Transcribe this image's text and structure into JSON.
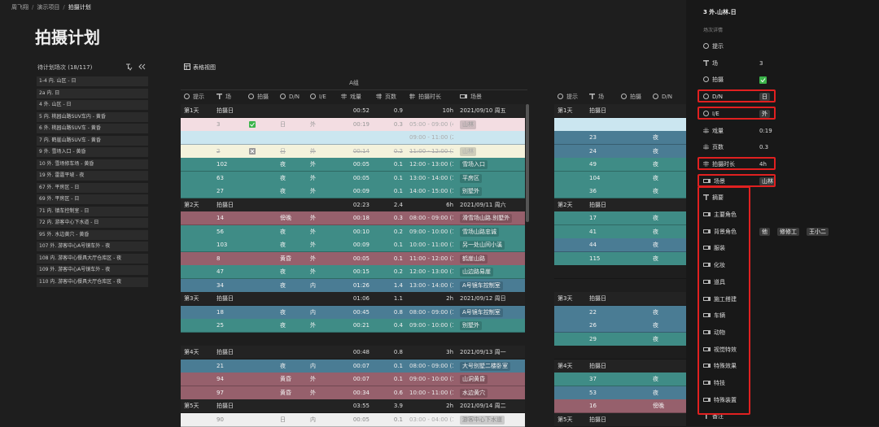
{
  "breadcrumb": {
    "items": [
      "周飞翔",
      "演示项目",
      "拍摄计划"
    ],
    "separator": "/"
  },
  "page_title": "拍摄计划",
  "unscheduled": {
    "title": "待计划场次 (18/117)",
    "items": [
      "1-4 内. 山区 - 日",
      "2a 内. 日",
      "4 外. 山区 - 日",
      "5 内. 桃园山路SUV车内 - 黄昏",
      "6 外. 桃园山路SUV车 - 黄昏",
      "7 内. 鹤崖山路SUV车 - 黄昏",
      "9 外. 雪场入口 - 黄昏",
      "10 外. 雪场修车场 - 黄昏",
      "19 外. 雷霆平坡 - 夜",
      "67 外. 平房区 - 日",
      "69 外. 平房区 - 日",
      "71 内. 镇车控制室 - 日",
      "72 内. 游客中心下水道 - 日",
      "95 外. 水边黄穴 - 黄昏",
      "107 外. 游客中心A号镜车外 - 夜",
      "108 内. 游客中心餐具大厅仓库区 - 夜",
      "109 外. 游客中心A号镜车外 - 夜",
      "110 内. 游客中心餐具大厅仓库区 - 夜"
    ]
  },
  "view": {
    "label": "表格视图"
  },
  "group": "A组",
  "table": {
    "columns": [
      {
        "label": "提示",
        "kind": "select"
      },
      {
        "label": "场",
        "kind": "text"
      },
      {
        "label": "拍摄",
        "kind": "select"
      },
      {
        "label": "D/N",
        "kind": "select"
      },
      {
        "label": "I/E",
        "kind": "select"
      },
      {
        "label": "戏量",
        "kind": "number"
      },
      {
        "label": "页数",
        "kind": "number"
      },
      {
        "label": "拍摄时长",
        "kind": "number"
      },
      {
        "label": "场景",
        "kind": "link"
      }
    ],
    "rows": [
      {
        "color": "day",
        "cells": [
          "第1天",
          "拍摄日",
          null,
          null,
          null,
          "00:52",
          "0.9",
          "10h",
          "2021/09/10 周五"
        ]
      },
      {
        "color": "pink",
        "icon": "check",
        "cells": [
          null,
          "3",
          null,
          "日",
          "外",
          "00:19",
          "0.3",
          "05:00 - 09:00 (4h)",
          "山林"
        ]
      },
      {
        "color": "lightblue",
        "cells": [
          null,
          null,
          null,
          null,
          null,
          null,
          null,
          "09:00 - 11:00 (2h)",
          null
        ]
      },
      {
        "color": "cream",
        "icon": "cross",
        "struck": true,
        "cells": [
          null,
          "2",
          null,
          "日",
          "外",
          "00:14",
          "0.2",
          "11:00 - 12:00 (1h)",
          "山林"
        ]
      },
      {
        "color": "teal",
        "cells": [
          null,
          "102",
          null,
          "夜",
          "外",
          "00:05",
          "0.1",
          "12:00 - 13:00 (1h)",
          "雪场入口"
        ]
      },
      {
        "color": "teal",
        "cells": [
          null,
          "63",
          null,
          "夜",
          "外",
          "00:05",
          "0.1",
          "13:00 - 14:00 (1h)",
          "平房区"
        ]
      },
      {
        "color": "teal",
        "cells": [
          null,
          "27",
          null,
          "夜",
          "外",
          "00:09",
          "0.1",
          "14:00 - 15:00 (1h)",
          "别墅外"
        ]
      },
      {
        "color": "day",
        "cells": [
          "第2天",
          "拍摄日",
          null,
          null,
          null,
          "02:23",
          "2.4",
          "6h",
          "2021/09/11 周六"
        ]
      },
      {
        "color": "mauve",
        "cells": [
          null,
          "14",
          null,
          "傍晚",
          "外",
          "00:18",
          "0.3",
          "08:00 - 09:00 (1h)",
          "滑雪场山路.别墅外"
        ]
      },
      {
        "color": "teal",
        "cells": [
          null,
          "56",
          null,
          "夜",
          "外",
          "00:10",
          "0.2",
          "09:00 - 10:00 (1h)",
          "雪场山路忠诚"
        ]
      },
      {
        "color": "teal",
        "cells": [
          null,
          "103",
          null,
          "夜",
          "外",
          "00:09",
          "0.1",
          "10:00 - 11:00 (1h)",
          "另一处山间小溪"
        ]
      },
      {
        "color": "mauve",
        "cells": [
          null,
          "8",
          null,
          "黄昏",
          "外",
          "00:05",
          "0.1",
          "11:00 - 12:00 (1h)",
          "鹤崖山路"
        ]
      },
      {
        "color": "teal",
        "cells": [
          null,
          "47",
          null,
          "夜",
          "外",
          "00:15",
          "0.2",
          "12:00 - 13:00 (1h)",
          "山边路易崖"
        ]
      },
      {
        "color": "blue",
        "cells": [
          null,
          "34",
          null,
          "夜",
          "内",
          "01:26",
          "1.4",
          "13:00 - 14:00 (1h)",
          "A号镜车控制室"
        ]
      },
      {
        "color": "day",
        "cells": [
          "第3天",
          "拍摄日",
          null,
          null,
          null,
          "01:06",
          "1.1",
          "2h",
          "2021/09/12 周日"
        ]
      },
      {
        "color": "blue",
        "cells": [
          null,
          "18",
          null,
          "夜",
          "内",
          "00:45",
          "0.8",
          "08:00 - 09:00 (1h)",
          "A号镜车控制室"
        ]
      },
      {
        "color": "teal",
        "cells": [
          null,
          "25",
          null,
          "夜",
          "外",
          "00:21",
          "0.4",
          "09:00 - 10:00 (1h)",
          "别墅外"
        ]
      },
      {
        "color": "gap"
      },
      {
        "color": "day",
        "cells": [
          "第4天",
          "拍摄日",
          null,
          null,
          null,
          "00:48",
          "0.8",
          "3h",
          "2021/09/13 周一"
        ]
      },
      {
        "color": "blue",
        "cells": [
          null,
          "21",
          null,
          "夜",
          "内",
          "00:07",
          "0.1",
          "08:00 - 09:00 (1h)",
          "大号别墅二楼卧室"
        ]
      },
      {
        "color": "mauve",
        "cells": [
          null,
          "94",
          null,
          "黄昏",
          "外",
          "00:07",
          "0.1",
          "09:00 - 10:00 (1h)",
          "山洞黄昏"
        ]
      },
      {
        "color": "mauve",
        "cells": [
          null,
          "97",
          null,
          "黄昏",
          "外",
          "00:34",
          "0.6",
          "10:00 - 11:00 (1h)",
          "水边黄穴"
        ]
      },
      {
        "color": "day",
        "cells": [
          "第5天",
          "拍摄日",
          null,
          null,
          null,
          "03:55",
          "3.9",
          "2h",
          "2021/09/14 周二"
        ]
      },
      {
        "color": "white",
        "cells": [
          null,
          "90",
          null,
          "日",
          "内",
          "00:05",
          "0.1",
          "03:00 - 04:00 (1h)",
          "游客中心下水道"
        ]
      }
    ]
  },
  "table2": {
    "columns": [
      {
        "label": "提示",
        "kind": "select"
      },
      {
        "label": "场",
        "kind": "text"
      },
      {
        "label": "拍摄",
        "kind": "select"
      },
      {
        "label": "D/N",
        "kind": "select"
      }
    ],
    "rows": [
      {
        "color": "day",
        "cells": [
          "第1天",
          "拍摄日",
          null,
          null
        ]
      },
      {
        "color": "lightblue"
      },
      {
        "color": "blue",
        "cells": [
          null,
          "23",
          null,
          "夜"
        ]
      },
      {
        "color": "blue",
        "cells": [
          null,
          "24",
          null,
          "夜"
        ]
      },
      {
        "color": "teal",
        "cells": [
          null,
          "49",
          null,
          "夜"
        ]
      },
      {
        "color": "teal",
        "cells": [
          null,
          "104",
          null,
          "夜"
        ]
      },
      {
        "color": "teal",
        "cells": [
          null,
          "36",
          null,
          "夜"
        ]
      },
      {
        "color": "day",
        "cells": [
          "第2天",
          "拍摄日",
          null,
          null
        ]
      },
      {
        "color": "teal",
        "cells": [
          null,
          "17",
          null,
          "夜"
        ]
      },
      {
        "color": "teal",
        "cells": [
          null,
          "41",
          null,
          "夜"
        ]
      },
      {
        "color": "blue",
        "cells": [
          null,
          "44",
          null,
          "夜"
        ]
      },
      {
        "color": "teal",
        "cells": [
          null,
          "115",
          null,
          "夜"
        ]
      },
      {
        "color": "gap"
      },
      {
        "color": "gap"
      },
      {
        "color": "day",
        "cells": [
          "第3天",
          "拍摄日",
          null,
          null
        ]
      },
      {
        "color": "blue",
        "cells": [
          null,
          "22",
          null,
          "夜"
        ]
      },
      {
        "color": "blue",
        "cells": [
          null,
          "26",
          null,
          "夜"
        ]
      },
      {
        "color": "teal",
        "cells": [
          null,
          "29",
          null,
          "夜"
        ]
      },
      {
        "color": "gap"
      },
      {
        "color": "day",
        "cells": [
          "第4天",
          "拍摄日",
          null,
          null
        ]
      },
      {
        "color": "teal",
        "cells": [
          null,
          "37",
          null,
          "夜"
        ]
      },
      {
        "color": "blue",
        "cells": [
          null,
          "53",
          null,
          "夜"
        ]
      },
      {
        "color": "mauve",
        "cells": [
          null,
          "16",
          null,
          "傍晚"
        ]
      },
      {
        "color": "day",
        "cells": [
          "第5天",
          "拍摄日",
          null,
          null
        ]
      }
    ]
  },
  "detail": {
    "title": "3 外.山林.日",
    "subtitle": "场次详情",
    "fields": [
      {
        "label": "提示",
        "kind": "select"
      },
      {
        "label": "场",
        "kind": "text",
        "value": "3"
      },
      {
        "label": "拍摄",
        "kind": "select",
        "check": true
      },
      {
        "label": "D/N",
        "kind": "select",
        "tags": [
          "日"
        ],
        "highlight": true
      },
      {
        "label": "I/E",
        "kind": "select",
        "tags": [
          "外"
        ],
        "highlight": true
      },
      {
        "label": "戏量",
        "kind": "number",
        "value": "0:19"
      },
      {
        "label": "页数",
        "kind": "number",
        "value": "0.3"
      },
      {
        "label": "拍摄时长",
        "kind": "number",
        "value": "4h",
        "highlight": true
      },
      {
        "label": "场景",
        "kind": "link",
        "tags": [
          "山林"
        ],
        "highlight": true
      },
      {
        "label": "摘要",
        "kind": "text"
      },
      {
        "label": "主要角色",
        "kind": "link"
      },
      {
        "label": "背景角色",
        "kind": "link",
        "tags": [
          "他",
          "修修工",
          "王小二"
        ]
      },
      {
        "label": "服装",
        "kind": "link"
      },
      {
        "label": "化妆",
        "kind": "link"
      },
      {
        "label": "道具",
        "kind": "link"
      },
      {
        "label": "施工搭建",
        "kind": "link"
      },
      {
        "label": "车辆",
        "kind": "link"
      },
      {
        "label": "动物",
        "kind": "link"
      },
      {
        "label": "视觉特效",
        "kind": "link"
      },
      {
        "label": "特殊效果",
        "kind": "link"
      },
      {
        "label": "特技",
        "kind": "link"
      },
      {
        "label": "特殊装置",
        "kind": "link"
      },
      {
        "label": "备注",
        "kind": "text"
      }
    ]
  }
}
